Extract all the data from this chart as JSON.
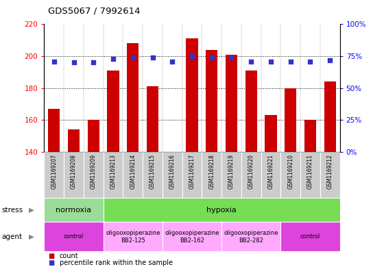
{
  "title": "GDS5067 / 7992614",
  "samples": [
    "GSM1169207",
    "GSM1169208",
    "GSM1169209",
    "GSM1169213",
    "GSM1169214",
    "GSM1169215",
    "GSM1169216",
    "GSM1169217",
    "GSM1169218",
    "GSM1169219",
    "GSM1169220",
    "GSM1169221",
    "GSM1169210",
    "GSM1169211",
    "GSM1169212"
  ],
  "counts": [
    167,
    154,
    160,
    191,
    208,
    181,
    140,
    211,
    204,
    201,
    191,
    163,
    180,
    160,
    184
  ],
  "percentiles": [
    71,
    70,
    70,
    73,
    74,
    74,
    71,
    75,
    74,
    74,
    71,
    71,
    71,
    71,
    72
  ],
  "bar_color": "#cc0000",
  "dot_color": "#3333cc",
  "ylim_left": [
    140,
    220
  ],
  "ylim_right": [
    0,
    100
  ],
  "yticks_left": [
    140,
    160,
    180,
    200,
    220
  ],
  "yticks_right": [
    0,
    25,
    50,
    75,
    100
  ],
  "ytick_labels_right": [
    "0%",
    "25%",
    "50%",
    "75%",
    "100%"
  ],
  "grid_values": [
    160,
    180,
    200
  ],
  "stress_groups": [
    {
      "label": "normoxia",
      "start": 0,
      "end": 3,
      "color": "#99dd99"
    },
    {
      "label": "hypoxia",
      "start": 3,
      "end": 15,
      "color": "#77dd55"
    }
  ],
  "agent_groups": [
    {
      "label": "control",
      "start": 0,
      "end": 3,
      "color": "#dd44dd"
    },
    {
      "label": "oligooxopiperazine\nBB2-125",
      "start": 3,
      "end": 6,
      "color": "#ffaaff"
    },
    {
      "label": "oligooxopiperazine\nBB2-162",
      "start": 6,
      "end": 9,
      "color": "#ffaaff"
    },
    {
      "label": "oligooxopiperazine\nBB2-282",
      "start": 9,
      "end": 12,
      "color": "#ffaaff"
    },
    {
      "label": "control",
      "start": 12,
      "end": 15,
      "color": "#dd44dd"
    }
  ],
  "legend_count_color": "#cc0000",
  "legend_pct_color": "#3333cc",
  "col_bg": "#cccccc",
  "plot_bg": "#ffffff"
}
